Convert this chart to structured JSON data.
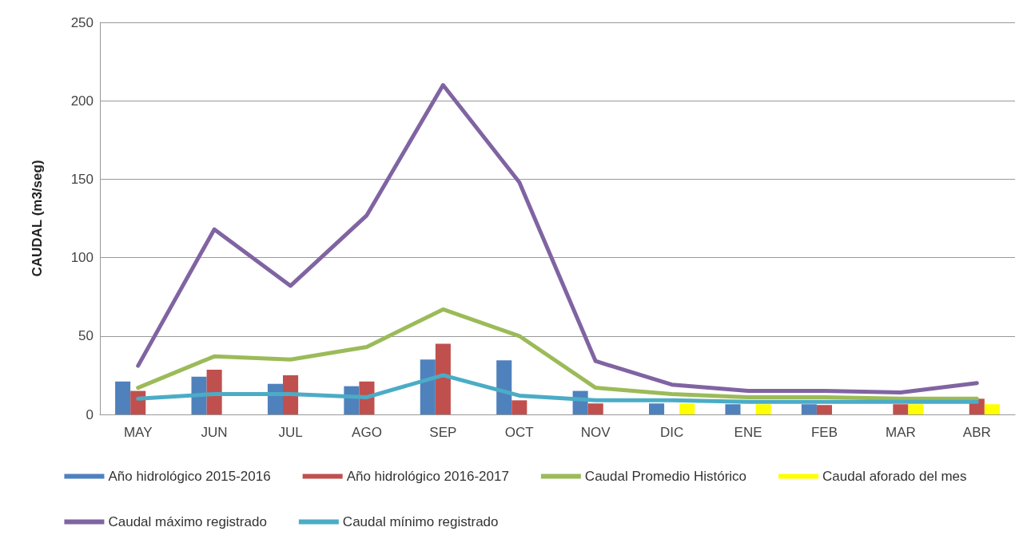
{
  "chart_data": {
    "type": "bar",
    "ylabel": "CAUDAL (m3/seg)",
    "categories": [
      "MAY",
      "JUN",
      "JUL",
      "AGO",
      "SEP",
      "OCT",
      "NOV",
      "DIC",
      "ENE",
      "FEB",
      "MAR",
      "ABR"
    ],
    "series": [
      {
        "name": "Año hidrológico 2015-2016",
        "color": "#4f81bd",
        "values": [
          21,
          24,
          19.5,
          18,
          35,
          34.5,
          15,
          7,
          6.5,
          6.5,
          null,
          null
        ]
      },
      {
        "name": "Año hidrológico 2016-2017",
        "color": "#c0504d",
        "values": [
          15,
          28.5,
          25,
          21,
          45,
          9,
          7,
          null,
          null,
          6,
          6.5,
          10
        ]
      },
      {
        "name": "Caudal Promedio Histórico",
        "type": "line",
        "color": "#9bbb59",
        "values": [
          17,
          37,
          35,
          43,
          67,
          50,
          17,
          13,
          11,
          11,
          10,
          10
        ]
      },
      {
        "name": "Caudal aforado del mes",
        "color": "#ffff00",
        "values": [
          null,
          null,
          null,
          null,
          null,
          null,
          null,
          7,
          6.5,
          null,
          6.5,
          6.5
        ]
      },
      {
        "name": "Caudal máximo registrado",
        "type": "line",
        "color": "#8064a2",
        "values": [
          31,
          118,
          82,
          127,
          210,
          148,
          34,
          19,
          15,
          15,
          14,
          20
        ]
      },
      {
        "name": "Caudal mínimo registrado",
        "type": "line",
        "color": "#4bacc6",
        "values": [
          10,
          13,
          13,
          11,
          25,
          12,
          9,
          9,
          8,
          8,
          8,
          8
        ]
      }
    ],
    "ylim": [
      0,
      250
    ],
    "yticks": [
      0,
      50,
      100,
      150,
      200,
      250
    ],
    "grid": "y",
    "legend": "bottom",
    "marker": "none",
    "line_style": "solid"
  }
}
